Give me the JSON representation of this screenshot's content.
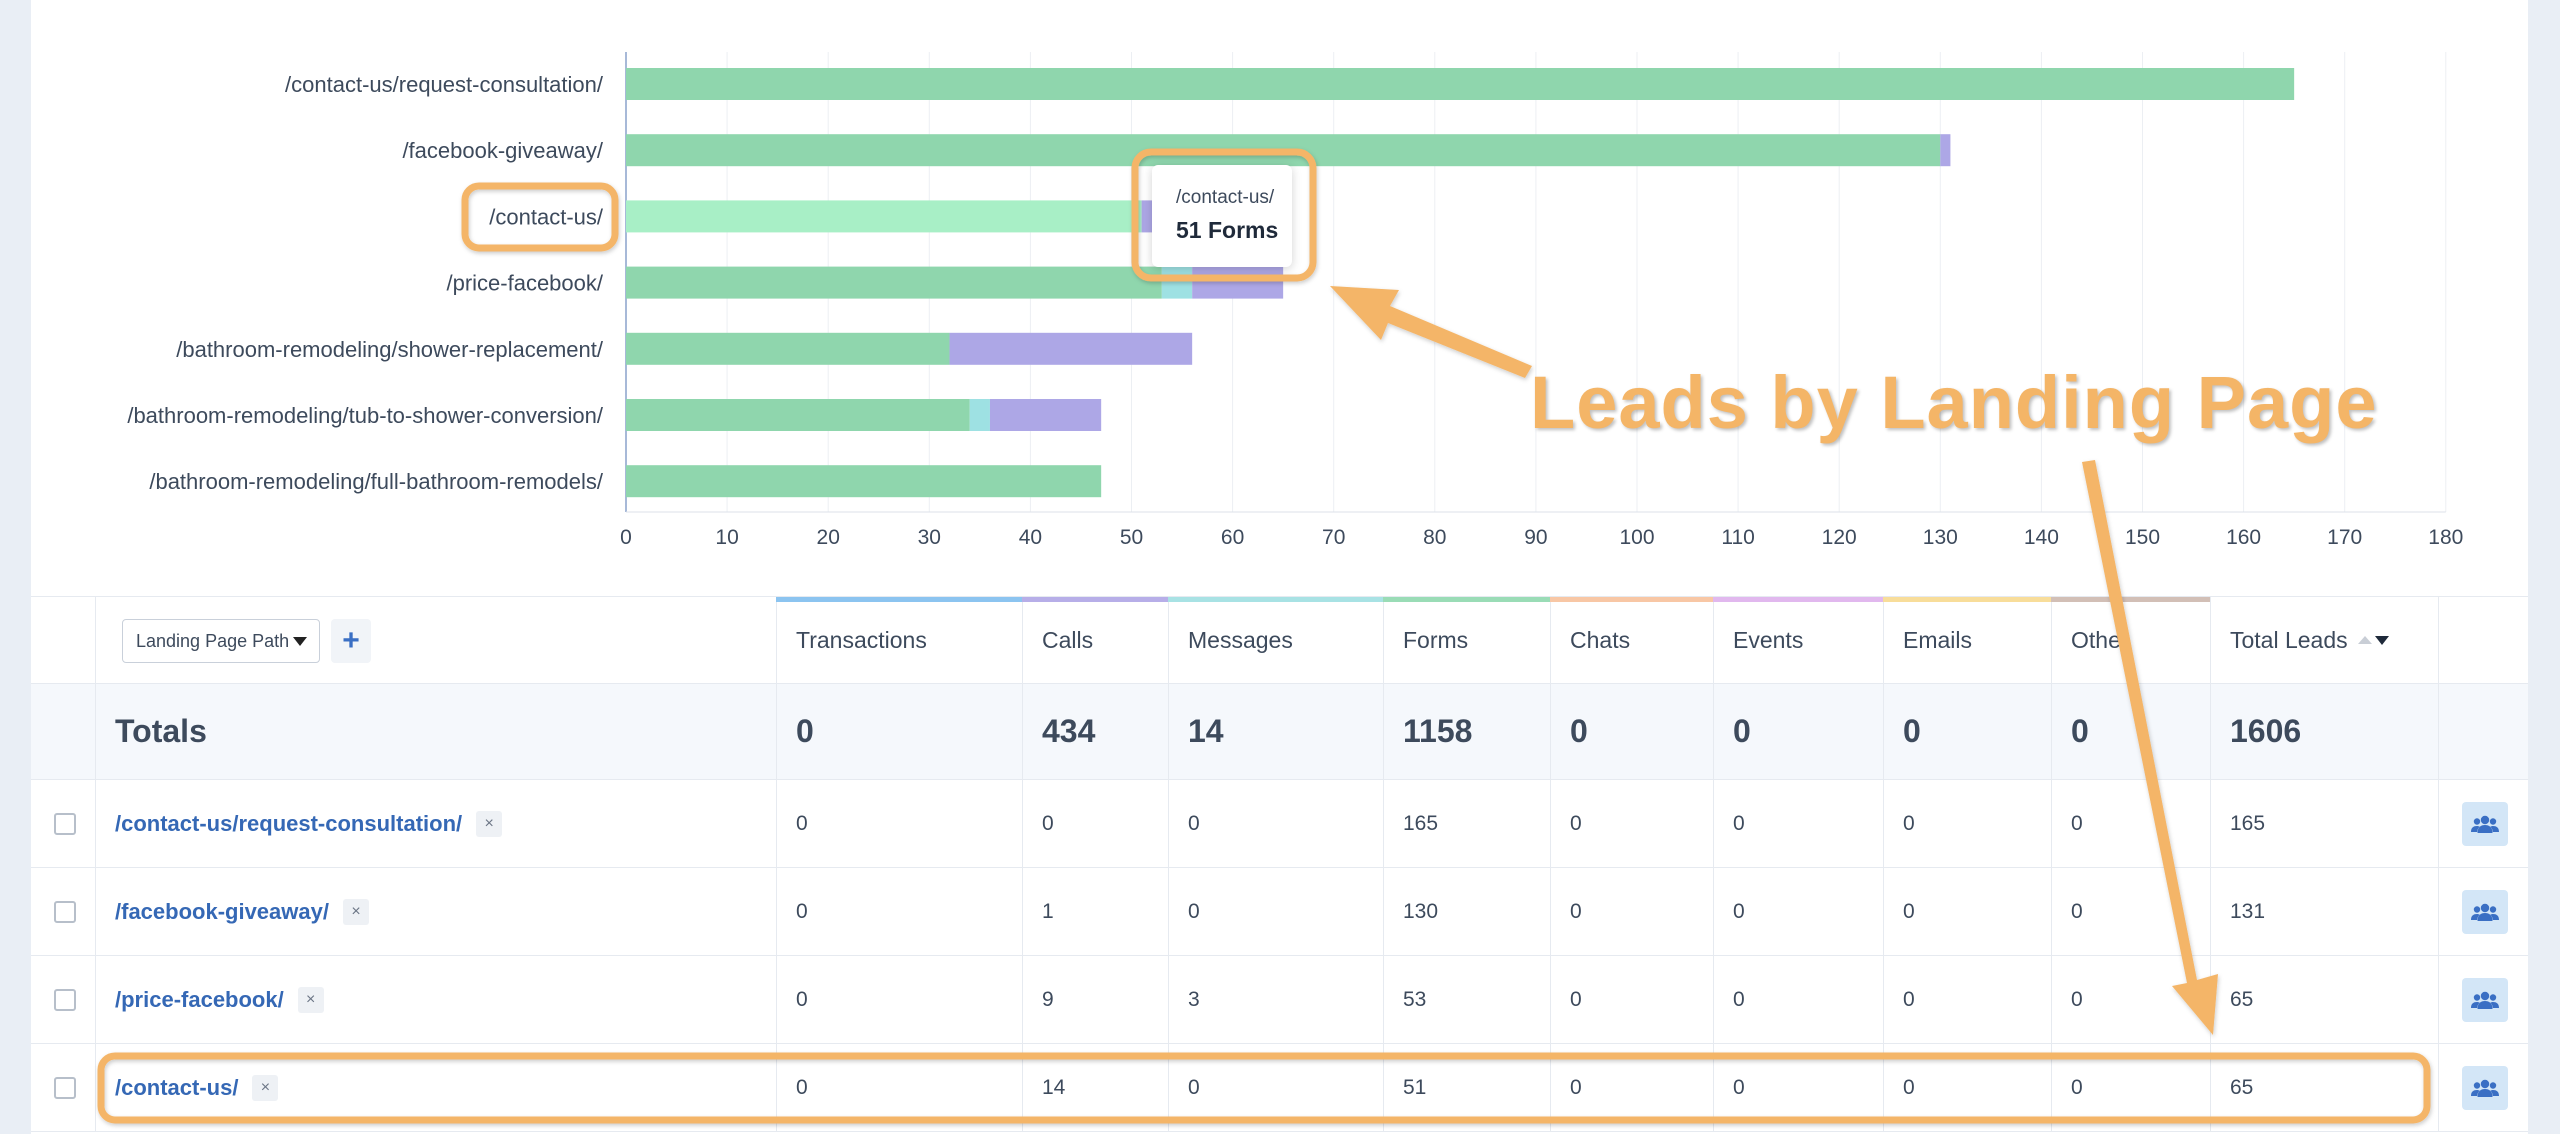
{
  "chart_data": {
    "type": "bar",
    "stacked": true,
    "orientation": "horizontal",
    "categories": [
      "/contact-us/request-consultation/",
      "/facebook-giveaway/",
      "/contact-us/",
      "/price-facebook/",
      "/bathroom-remodeling/shower-replacement/",
      "/bathroom-remodeling/tub-to-shower-conversion/",
      "/bathroom-remodeling/full-bathroom-remodels/"
    ],
    "series": [
      {
        "name": "Forms",
        "values": [
          165,
          130,
          51,
          53,
          32,
          34,
          47
        ]
      },
      {
        "name": "Messages",
        "values": [
          0,
          0,
          0,
          3,
          0,
          2,
          0
        ]
      },
      {
        "name": "Calls",
        "values": [
          0,
          1,
          14,
          9,
          24,
          11,
          0
        ]
      }
    ],
    "xlim": [
      0,
      180
    ],
    "xticks": [
      0,
      10,
      20,
      30,
      40,
      50,
      60,
      70,
      80,
      90,
      100,
      110,
      120,
      130,
      140,
      150,
      160,
      170,
      180
    ],
    "grid": true,
    "highlighted_category": "/contact-us/",
    "colors": {
      "Forms": "#8fd6ad",
      "Forms_highlight": "#a8efc6",
      "Messages": "#9ee1e3",
      "Calls": "#ada7e6"
    }
  },
  "tooltip": {
    "path": "/contact-us/",
    "value": "51 Forms"
  },
  "annotation": {
    "title": "Leads by Landing Page",
    "color": "#f4b567"
  },
  "table": {
    "dimension_select": "Landing Page Path",
    "add_label": "+",
    "headers": [
      "Transactions",
      "Calls",
      "Messages",
      "Forms",
      "Chats",
      "Events",
      "Emails",
      "Other",
      "Total Leads"
    ],
    "header_colors": [
      "#8cc4f0",
      "#b7aee8",
      "#a8e2e4",
      "#9adcb6",
      "#f8c7a5",
      "#e1b8ee",
      "#f8dd9a",
      "#d2bfb6",
      ""
    ],
    "totals": {
      "label": "Totals",
      "values": [
        "0",
        "434",
        "14",
        "1158",
        "0",
        "0",
        "0",
        "0",
        "1606"
      ]
    },
    "rows": [
      {
        "path": "/contact-us/request-consultation/",
        "values": [
          "0",
          "0",
          "0",
          "165",
          "0",
          "0",
          "0",
          "0",
          "165"
        ]
      },
      {
        "path": "/facebook-giveaway/",
        "values": [
          "0",
          "1",
          "0",
          "130",
          "0",
          "0",
          "0",
          "0",
          "131"
        ]
      },
      {
        "path": "/price-facebook/",
        "values": [
          "0",
          "9",
          "3",
          "53",
          "0",
          "0",
          "0",
          "0",
          "65"
        ]
      },
      {
        "path": "/contact-us/",
        "values": [
          "0",
          "14",
          "0",
          "51",
          "0",
          "0",
          "0",
          "0",
          "65"
        ]
      }
    ],
    "remove_glyph": "×"
  }
}
